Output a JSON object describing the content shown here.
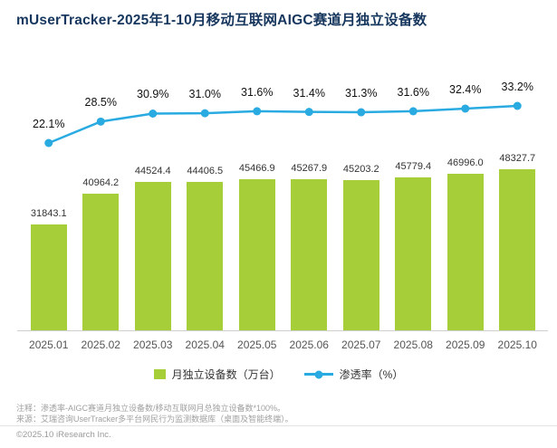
{
  "page": {
    "title": "mUserTracker-2025年1-10月移动互联网AIGC赛道月独立设备数"
  },
  "chart_data": {
    "type": "bar+line",
    "title": "mUserTracker-2025年1-10月移动互联网AIGC赛道月独立设备数",
    "categories": [
      "2025.01",
      "2025.02",
      "2025.03",
      "2025.04",
      "2025.05",
      "2025.06",
      "2025.07",
      "2025.08",
      "2025.09",
      "2025.10"
    ],
    "series": [
      {
        "name": "月独立设备数（万台）",
        "type": "bar",
        "color": "#a5ce38",
        "values": [
          31843.1,
          40964.2,
          44524.4,
          44406.5,
          45466.9,
          45267.9,
          45203.2,
          45779.4,
          46996.0,
          48327.7
        ]
      },
      {
        "name": "渗透率（%）",
        "type": "line",
        "color": "#29abe2",
        "values": [
          22.1,
          28.5,
          30.9,
          31.0,
          31.6,
          31.4,
          31.3,
          31.6,
          32.4,
          33.2
        ]
      }
    ],
    "bar_unit": "万台",
    "line_unit": "%",
    "legend_position": "bottom",
    "grid": false
  },
  "footer": {
    "note1": "注释：渗透率-AIGC赛道月独立设备数/移动互联网月总独立设备数*100%。",
    "note2": "来源：艾瑞咨询UserTracker多平台网民行为监测数据库（桌面及智能终端）。",
    "copyright": "©2025.10 iResearch Inc."
  }
}
